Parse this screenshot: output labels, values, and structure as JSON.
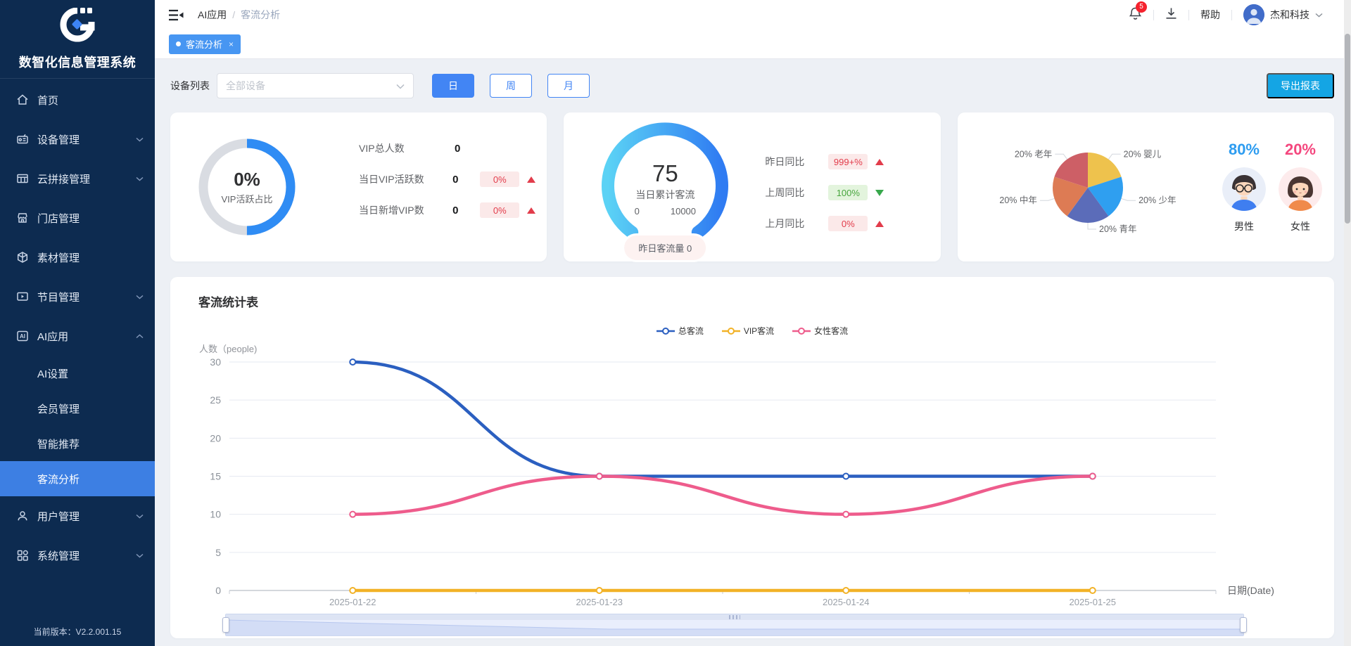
{
  "app": {
    "name": "数智化信息管理系统",
    "version": "当前版本：V2.2.001.15"
  },
  "sidebar": {
    "items": [
      {
        "label": "首页",
        "icon": "home-icon",
        "chevron": ""
      },
      {
        "label": "设备管理",
        "icon": "device-icon",
        "chevron": "down"
      },
      {
        "label": "云拼接管理",
        "icon": "splice-grid-icon",
        "chevron": "down"
      },
      {
        "label": "门店管理",
        "icon": "store-icon",
        "chevron": ""
      },
      {
        "label": "素材管理",
        "icon": "material-cube-icon",
        "chevron": ""
      },
      {
        "label": "节目管理",
        "icon": "program-icon",
        "chevron": "down"
      },
      {
        "label": "AI应用",
        "icon": "ai-icon",
        "chevron": "up"
      }
    ],
    "ai_submenu": [
      {
        "label": "AI设置"
      },
      {
        "label": "会员管理"
      },
      {
        "label": "智能推荐"
      },
      {
        "label": "客流分析",
        "active": true
      }
    ],
    "bottom_items": [
      {
        "label": "用户管理",
        "icon": "user-icon",
        "chevron": "down"
      },
      {
        "label": "系统管理",
        "icon": "system-icon",
        "chevron": "down"
      }
    ]
  },
  "header": {
    "breadcrumb_parent": "AI应用",
    "breadcrumb_sep": "/",
    "breadcrumb_current": "客流分析",
    "notification_count": "5",
    "help": "帮助",
    "account": "杰和科技"
  },
  "tab": {
    "label": "客流分析",
    "close": "×"
  },
  "toolbar": {
    "device_label": "设备列表",
    "device_value": "全部设备",
    "day": "日",
    "week": "周",
    "month": "月",
    "export": "导出报表"
  },
  "vip_card": {
    "ring_value": "0%",
    "ring_label": "VIP活跃占比",
    "ring_fill_percent": 50,
    "rows": [
      {
        "label": "VIP总人数",
        "value": "0",
        "badge": "",
        "trend": ""
      },
      {
        "label": "当日VIP活跃数",
        "value": "0",
        "badge": "0%",
        "trend": "up",
        "tone": "red"
      },
      {
        "label": "当日新增VIP数",
        "value": "0",
        "badge": "0%",
        "trend": "up",
        "tone": "red"
      }
    ]
  },
  "flow_card": {
    "gauge_value": "75",
    "gauge_label": "当日累计客流",
    "gauge_min": "0",
    "gauge_max": "10000",
    "pill": "昨日客流量 0",
    "rows": [
      {
        "label": "昨日同比",
        "badge": "999+%",
        "trend": "up",
        "tone": "red"
      },
      {
        "label": "上周同比",
        "badge": "100%",
        "trend": "down",
        "tone": "green"
      },
      {
        "label": "上月同比",
        "badge": "0%",
        "trend": "up",
        "tone": "red"
      }
    ]
  },
  "demo_card": {
    "male_pct": "80%",
    "male_label": "男性",
    "female_pct": "20%",
    "female_label": "女性"
  },
  "chart_card": {
    "title": "客流统计表"
  },
  "chart_data": [
    {
      "type": "line",
      "title": "客流统计表",
      "ylabel": "人数（people)",
      "xlabel": "日期(Date)",
      "x": [
        "2025-01-22",
        "2025-01-23",
        "2025-01-24",
        "2025-01-25"
      ],
      "series": [
        {
          "name": "总客流",
          "color": "#2b5fc0",
          "values": [
            30,
            15,
            15,
            15
          ]
        },
        {
          "name": "VIP客流",
          "color": "#f2b227",
          "values": [
            0,
            0,
            0,
            0
          ]
        },
        {
          "name": "女性客流",
          "color": "#ee5c8c",
          "values": [
            10,
            15,
            10,
            15
          ]
        }
      ],
      "ylim": [
        0,
        30
      ],
      "ytick_step": 5,
      "smooth": true,
      "grid": true,
      "legend_position": "top-center",
      "datazoom_slider": true
    },
    {
      "type": "pie",
      "slices": [
        {
          "label": "婴儿",
          "value": 20,
          "color": "#eec24d"
        },
        {
          "label": "少年",
          "value": 20,
          "color": "#2f9ff0"
        },
        {
          "label": "青年",
          "value": 20,
          "color": "#5b6cb9"
        },
        {
          "label": "中年",
          "value": 20,
          "color": "#dd7b54"
        },
        {
          "label": "老年",
          "value": 20,
          "color": "#cd5f66"
        }
      ],
      "label_format": "{value}% {label}"
    }
  ],
  "colors": {
    "primary_blue": "#4285f4",
    "sidebar_bg": "#0d2b50",
    "active_menu": "#3d7fe3",
    "export_button": "#14a5e4",
    "tab_blue": "#4796f2",
    "male_blue": "#2d9cf0",
    "female_pink": "#f4477e",
    "badge_red_bg": "#fbe9e9",
    "badge_red_text": "#e23c4b",
    "badge_green_bg": "#e3f4dd",
    "badge_green_text": "#47a53d",
    "gauge_gradient_start": "#5bd2f5",
    "gauge_gradient_end": "#2f7bf2",
    "donut_blue": "#2f8cf4",
    "notification_red": "#f5222d"
  }
}
